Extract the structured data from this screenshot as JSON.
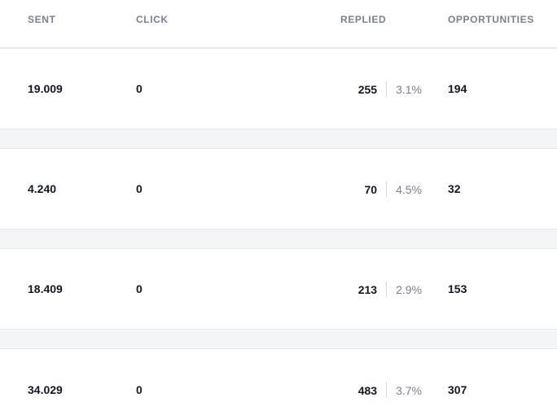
{
  "table": {
    "headers": {
      "sent": "SENT",
      "click": "CLICK",
      "replied": "REPLIED",
      "opportunities": "OPPORTUNITIES"
    },
    "rows": [
      {
        "sent": "19.009",
        "click": "0",
        "replied_count": "255",
        "replied_rate": "3.1%",
        "opportunities": "194"
      },
      {
        "sent": "4.240",
        "click": "0",
        "replied_count": "70",
        "replied_rate": "4.5%",
        "opportunities": "32"
      },
      {
        "sent": "18.409",
        "click": "0",
        "replied_count": "213",
        "replied_rate": "2.9%",
        "opportunities": "153"
      },
      {
        "sent": "34.029",
        "click": "0",
        "replied_count": "483",
        "replied_rate": "3.7%",
        "opportunities": "307"
      }
    ]
  }
}
